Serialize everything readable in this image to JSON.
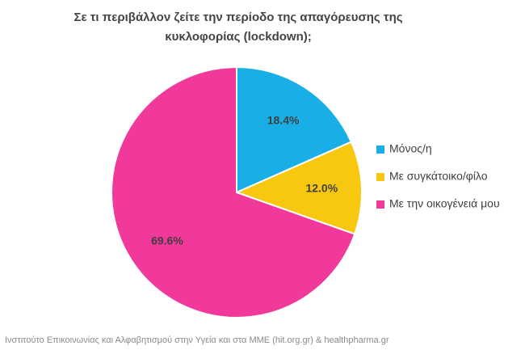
{
  "chart_data": {
    "type": "pie",
    "title": [
      "Σε τι περιβάλλον ζείτε την περίοδο της απαγόρευσης της",
      "κυκλοφορίας (lockdown);"
    ],
    "categories": [
      "Μόνος/η",
      "Με συγκάτοικο/φίλο",
      "Με την οικογένειά μου"
    ],
    "values": [
      18.4,
      12.0,
      69.6
    ],
    "value_labels": [
      "18.4%",
      "12.0%",
      "69.6%"
    ],
    "colors": [
      "#1aaee6",
      "#f8c70f",
      "#f1389b"
    ],
    "legend": "right",
    "source": "Ινστιτούτο Επικοινωνίας και Αλφαβητισμού στην Υγεία και στα ΜΜΕ (hit.org.gr) & healthpharma.gr"
  }
}
